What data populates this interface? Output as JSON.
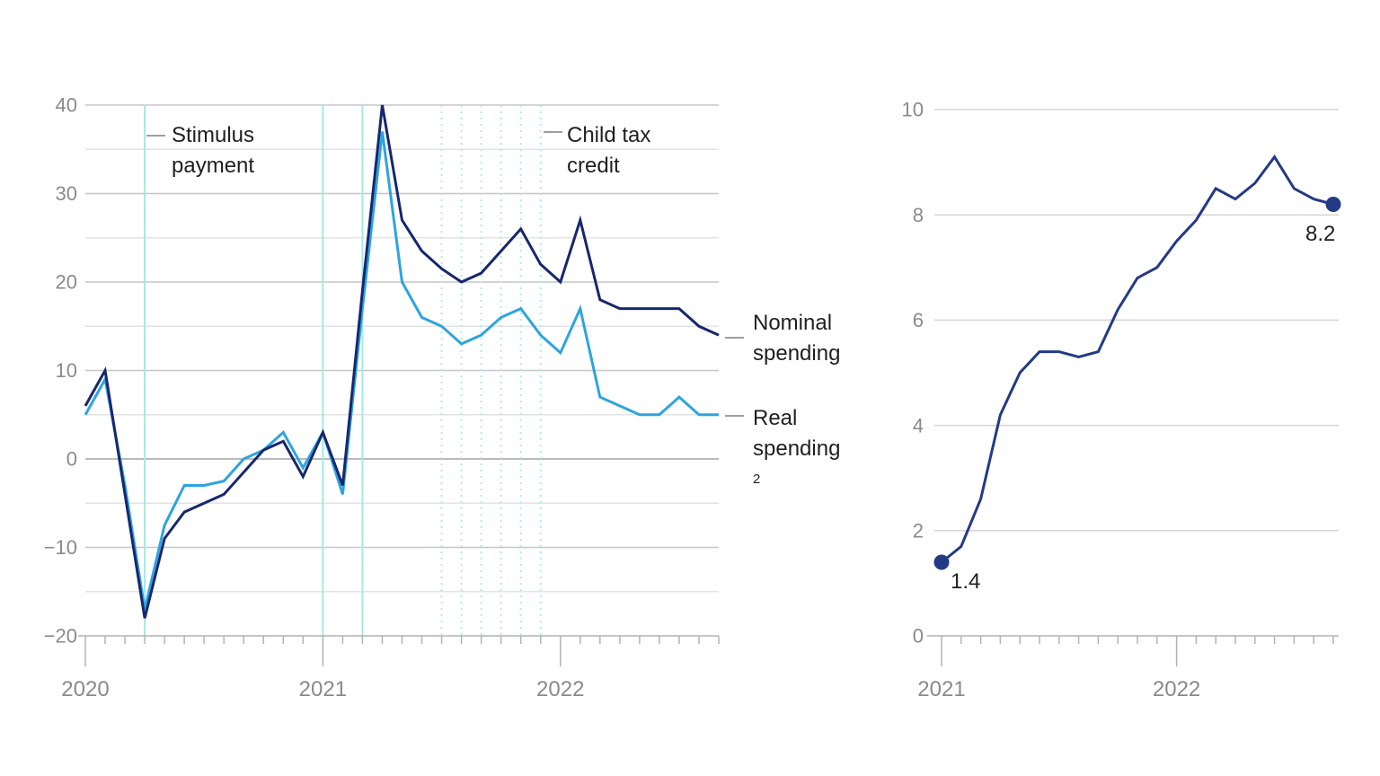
{
  "annotations": {
    "stimulus": {
      "lines": [
        "Stimulus",
        "payment"
      ]
    },
    "child_tax": {
      "lines": [
        "Child tax",
        "credit"
      ]
    }
  },
  "series_labels": {
    "nominal": {
      "lines": [
        "Nominal",
        "spending"
      ]
    },
    "real": {
      "lines": [
        "Real",
        "spending"
      ],
      "sup": "2"
    }
  },
  "colors": {
    "nominal_line": "#17276d",
    "real_line": "#2ea4df",
    "cpi_line": "#233a85",
    "event_line_solid": "#a5e8e4",
    "event_line_dotted": "#aeebe7",
    "grid_major": "#c6c6c6",
    "grid_minor": "#e3e3e3",
    "grid_zero": "#a3a3a3",
    "axis": "#b3b3b3",
    "tick_label": "#8a8a8a",
    "grid_right": "#d5d5d5"
  },
  "chart_data": [
    {
      "type": "line",
      "title": "",
      "x_monthly_start": "2020-01",
      "x_monthly_end": "2022-09",
      "x_tick_labels": [
        "2020",
        "2021",
        "2022"
      ],
      "x_tick_month_indices": [
        0,
        12,
        24
      ],
      "ylim": [
        -20,
        40
      ],
      "grid_step": 5,
      "y_ticks": [
        40,
        30,
        20,
        10,
        0,
        -10,
        -20
      ],
      "y_tick_labels": [
        "40",
        "30",
        "20",
        "10",
        "0",
        "−10",
        "−20"
      ],
      "series": [
        {
          "name": "Nominal spending",
          "values": [
            6,
            10,
            -4,
            -18,
            -9,
            -6,
            -5,
            -4,
            -1.5,
            1,
            2,
            -2,
            3,
            -3,
            19,
            40,
            27,
            23.5,
            21.5,
            20,
            21,
            23.5,
            26,
            22,
            20,
            27,
            18,
            17,
            17,
            17,
            17,
            15,
            14
          ]
        },
        {
          "name": "Real spending",
          "values": [
            5,
            9,
            -3,
            -17,
            -7.5,
            -3,
            -3,
            -2.5,
            0,
            1,
            3,
            -1,
            3,
            -4,
            17,
            37,
            20,
            16,
            15,
            13,
            14,
            16,
            17,
            14,
            12,
            17,
            7,
            6,
            5,
            5,
            7,
            5,
            5
          ]
        }
      ],
      "event_lines": {
        "solid": {
          "label": "Stimulus payment",
          "month_indices": [
            3,
            12,
            14
          ]
        },
        "dotted": {
          "label": "Child tax credit",
          "month_indices": [
            18,
            19,
            20,
            21,
            22,
            23
          ]
        }
      }
    },
    {
      "type": "line",
      "title": "",
      "x_monthly_start": "2021-01",
      "x_monthly_end": "2022-09",
      "x_tick_labels": [
        "2021",
        "2022"
      ],
      "x_tick_month_indices": [
        0,
        12
      ],
      "ylim": [
        0,
        10
      ],
      "grid_step": 2,
      "y_ticks": [
        10,
        8,
        6,
        4,
        2,
        0
      ],
      "y_tick_labels": [
        "10",
        "8",
        "6",
        "4",
        "2",
        "0"
      ],
      "series": [
        {
          "values": [
            1.4,
            1.7,
            2.6,
            4.2,
            5.0,
            5.4,
            5.4,
            5.3,
            5.4,
            6.2,
            6.8,
            7.0,
            7.5,
            7.9,
            8.5,
            8.3,
            8.6,
            9.1,
            8.5,
            8.3,
            8.2
          ]
        }
      ],
      "endpoint_labels": {
        "first": "1.4",
        "last": "8.2"
      }
    }
  ]
}
